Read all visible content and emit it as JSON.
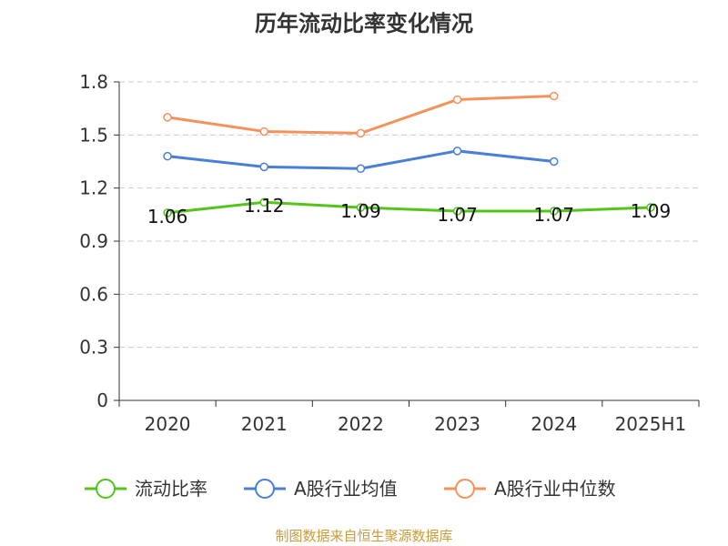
{
  "chart_data": {
    "type": "line",
    "title": "历年流动比率变化情况",
    "categories": [
      "2020",
      "2021",
      "2022",
      "2023",
      "2024",
      "2025H1"
    ],
    "ylim": [
      0,
      1.8
    ],
    "yticks": [
      "0",
      "0.3",
      "0.6",
      "0.9",
      "1.2",
      "1.5",
      "1.8"
    ],
    "grid": true,
    "legend_position": "bottom",
    "series": [
      {
        "name": "流动比率",
        "color": "#52c41a",
        "values": [
          1.06,
          1.12,
          1.09,
          1.07,
          1.07,
          1.09
        ],
        "labels": [
          "1.06",
          "1.12",
          "1.09",
          "1.07",
          "1.07",
          "1.09"
        ]
      },
      {
        "name": "A股行业均值",
        "color": "#4a7fd6",
        "values": [
          1.38,
          1.32,
          1.31,
          1.41,
          1.35,
          null
        ]
      },
      {
        "name": "A股行业中位数",
        "color": "#f5925a",
        "values": [
          1.6,
          1.52,
          1.51,
          1.7,
          1.72,
          null
        ]
      }
    ]
  },
  "source": "制图数据来自恒生聚源数据库"
}
